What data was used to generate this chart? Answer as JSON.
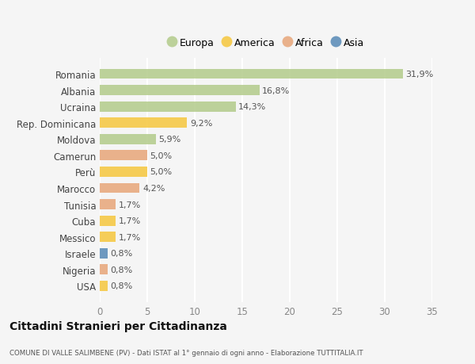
{
  "countries": [
    "Romania",
    "Albania",
    "Ucraina",
    "Rep. Dominicana",
    "Moldova",
    "Camerun",
    "Perù",
    "Marocco",
    "Tunisia",
    "Cuba",
    "Messico",
    "Israele",
    "Nigeria",
    "USA"
  ],
  "values": [
    31.9,
    16.8,
    14.3,
    9.2,
    5.9,
    5.0,
    5.0,
    4.2,
    1.7,
    1.7,
    1.7,
    0.8,
    0.8,
    0.8
  ],
  "labels": [
    "31,9%",
    "16,8%",
    "14,3%",
    "9,2%",
    "5,9%",
    "5,0%",
    "5,0%",
    "4,2%",
    "1,7%",
    "1,7%",
    "1,7%",
    "0,8%",
    "0,8%",
    "0,8%"
  ],
  "continents": [
    "Europa",
    "Europa",
    "Europa",
    "America",
    "Europa",
    "Africa",
    "America",
    "Africa",
    "Africa",
    "America",
    "America",
    "Asia",
    "Africa",
    "America"
  ],
  "colors": {
    "Europa": "#b5cc8e",
    "America": "#f5c842",
    "Africa": "#e8a87c",
    "Asia": "#5b8db8"
  },
  "legend_order": [
    "Europa",
    "America",
    "Africa",
    "Asia"
  ],
  "title": "Cittadini Stranieri per Cittadinanza",
  "subtitle": "COMUNE DI VALLE SALIMBENE (PV) - Dati ISTAT al 1° gennaio di ogni anno - Elaborazione TUTTITALIA.IT",
  "xlim": [
    0,
    35
  ],
  "xticks": [
    0,
    5,
    10,
    15,
    20,
    25,
    30,
    35
  ],
  "background_color": "#f5f5f5",
  "grid_color": "#ffffff"
}
